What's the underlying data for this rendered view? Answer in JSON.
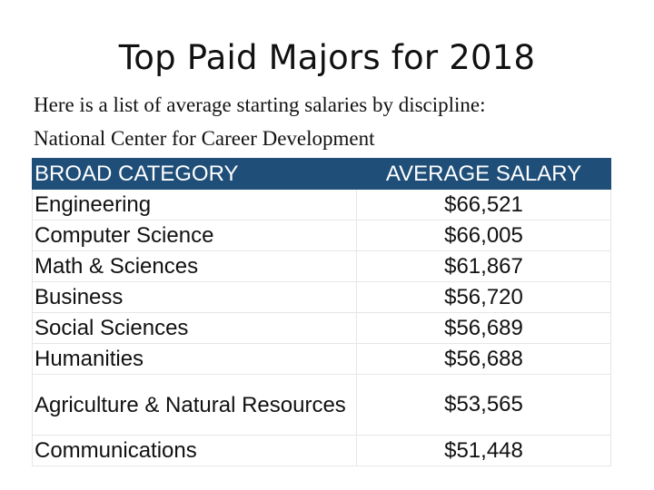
{
  "slide": {
    "title": "Top Paid Majors for 2018",
    "intro_line1": "Here is a list of average starting salaries by discipline:",
    "intro_line2": "National Center for Career Development"
  },
  "table": {
    "headers": {
      "category": "BROAD CATEGORY",
      "salary": "AVERAGE SALARY"
    },
    "rows": [
      {
        "category": "Engineering",
        "salary": "$66,521"
      },
      {
        "category": "Computer Science",
        "salary": "$66,005"
      },
      {
        "category": "Math & Sciences",
        "salary": "$61,867"
      },
      {
        "category": "Business",
        "salary": "$56,720"
      },
      {
        "category": "Social Sciences",
        "salary": "$56,689"
      },
      {
        "category": "Humanities",
        "salary": "$56,688"
      },
      {
        "category": "Agriculture & Natural Resources",
        "salary": "$53,565"
      },
      {
        "category": "Communications",
        "salary": "$51,448"
      }
    ]
  },
  "colors": {
    "header_background": "#1f4e79",
    "header_text": "#ffffff"
  }
}
